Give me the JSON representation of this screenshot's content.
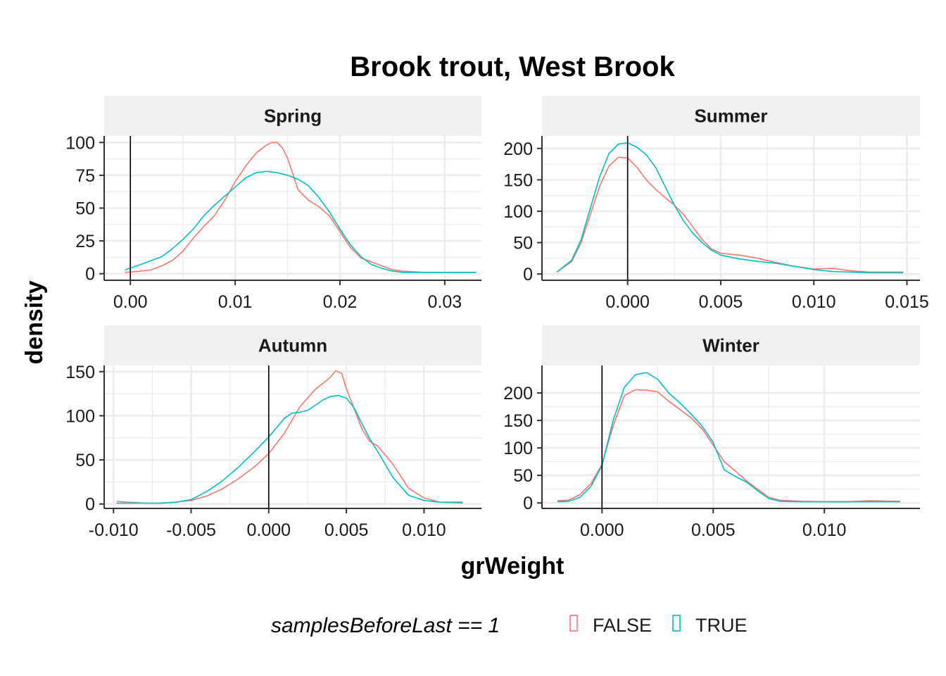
{
  "chart_data": {
    "type": "line",
    "title": "Brook trout, West Brook",
    "xlabel": "grWeight",
    "ylabel": "density",
    "grid": true,
    "legend": {
      "position": "bottom",
      "title": "samplesBeforeLast == 1",
      "entries": [
        {
          "name": "FALSE",
          "color": "#F8766D"
        },
        {
          "name": "TRUE",
          "color": "#00BFC4"
        }
      ]
    },
    "colors": {
      "FALSE": "#F8766D",
      "TRUE": "#00BFC4",
      "strip_bg": "#F0F0F0",
      "grid": "#EBEBEB"
    },
    "vline_x": 0,
    "panels": [
      {
        "name": "Spring",
        "xlim": [
          -0.0025,
          0.0335
        ],
        "ylim": [
          -5,
          105
        ],
        "xticks": [
          0,
          0.01,
          0.02,
          0.03
        ],
        "xtick_labels": [
          "0.00",
          "0.01",
          "0.02",
          "0.03"
        ],
        "yticks": [
          0,
          25,
          50,
          75,
          100
        ],
        "ytick_labels": [
          "0",
          "25",
          "50",
          "75",
          "100"
        ],
        "series": [
          {
            "name": "FALSE",
            "x": [
              -0.0005,
              0.001,
              0.002,
              0.003,
              0.004,
              0.005,
              0.006,
              0.007,
              0.008,
              0.009,
              0.01,
              0.011,
              0.012,
              0.013,
              0.0135,
              0.014,
              0.0145,
              0.015,
              0.0155,
              0.016,
              0.017,
              0.018,
              0.019,
              0.02,
              0.021,
              0.022,
              0.023,
              0.024,
              0.025,
              0.026,
              0.028,
              0.03,
              0.033
            ],
            "y": [
              1,
              2,
              3,
              6,
              10,
              17,
              27,
              36,
              44,
              56,
              70,
              82,
              92,
              98,
              100,
              100,
              96,
              88,
              76,
              64,
              56,
              51,
              44,
              32,
              20,
              12,
              9,
              6,
              3,
              2,
              1,
              1,
              1
            ]
          },
          {
            "name": "TRUE",
            "x": [
              -0.0005,
              0.001,
              0.002,
              0.003,
              0.004,
              0.005,
              0.006,
              0.007,
              0.008,
              0.009,
              0.01,
              0.011,
              0.012,
              0.013,
              0.014,
              0.015,
              0.016,
              0.017,
              0.018,
              0.019,
              0.02,
              0.021,
              0.022,
              0.023,
              0.024,
              0.025,
              0.026,
              0.028,
              0.03,
              0.033
            ],
            "y": [
              3,
              7,
              10,
              13,
              19,
              26,
              34,
              44,
              52,
              59,
              66,
              73,
              77,
              78,
              77,
              75,
              72,
              67,
              58,
              47,
              34,
              22,
              13,
              7,
              4,
              2,
              1,
              1,
              1,
              1
            ]
          }
        ]
      },
      {
        "name": "Summer",
        "xlim": [
          -0.0046,
          0.0157
        ],
        "ylim": [
          -10,
          220
        ],
        "xticks": [
          0,
          0.005,
          0.01,
          0.015
        ],
        "xtick_labels": [
          "0.000",
          "0.005",
          "0.010",
          "0.015"
        ],
        "yticks": [
          0,
          50,
          100,
          150,
          200
        ],
        "ytick_labels": [
          "0",
          "50",
          "100",
          "150",
          "200"
        ],
        "series": [
          {
            "name": "FALSE",
            "x": [
              -0.0038,
              -0.003,
              -0.0025,
              -0.002,
              -0.0015,
              -0.001,
              -0.0005,
              0,
              0.0005,
              0.001,
              0.0015,
              0.002,
              0.0025,
              0.003,
              0.0035,
              0.004,
              0.0045,
              0.005,
              0.006,
              0.007,
              0.008,
              0.009,
              0.01,
              0.011,
              0.012,
              0.013,
              0.0148
            ],
            "y": [
              3,
              20,
              50,
              95,
              140,
              172,
              186,
              185,
              170,
              150,
              135,
              122,
              110,
              95,
              75,
              55,
              40,
              33,
              30,
              25,
              18,
              12,
              8,
              9,
              5,
              3,
              3
            ]
          },
          {
            "name": "TRUE",
            "x": [
              -0.0038,
              -0.003,
              -0.0025,
              -0.002,
              -0.0015,
              -0.001,
              -0.0005,
              0,
              0.0005,
              0.001,
              0.0015,
              0.002,
              0.0025,
              0.003,
              0.0035,
              0.004,
              0.0045,
              0.005,
              0.006,
              0.007,
              0.008,
              0.009,
              0.01,
              0.011,
              0.012,
              0.013,
              0.0148
            ],
            "y": [
              3,
              22,
              55,
              105,
              155,
              192,
              207,
              209,
              202,
              190,
              170,
              140,
              110,
              85,
              65,
              50,
              38,
              30,
              24,
              20,
              17,
              12,
              7,
              4,
              3,
              2,
              2
            ]
          }
        ]
      },
      {
        "name": "Autumn",
        "xlim": [
          -0.0106,
          0.0137
        ],
        "ylim": [
          -5,
          157
        ],
        "xticks": [
          -0.01,
          -0.005,
          0,
          0.005,
          0.01
        ],
        "xtick_labels": [
          "-0.010",
          "-0.005",
          "0.000",
          "0.005",
          "0.010"
        ],
        "yticks": [
          0,
          50,
          100,
          150
        ],
        "ytick_labels": [
          "0",
          "50",
          "100",
          "150"
        ],
        "series": [
          {
            "name": "FALSE",
            "x": [
              -0.0098,
              -0.009,
              -0.008,
              -0.007,
              -0.006,
              -0.005,
              -0.004,
              -0.003,
              -0.002,
              -0.001,
              0,
              0.001,
              0.002,
              0.003,
              0.0035,
              0.004,
              0.0043,
              0.0047,
              0.005,
              0.0055,
              0.006,
              0.0065,
              0.007,
              0.008,
              0.009,
              0.01,
              0.011,
              0.0125
            ],
            "y": [
              3,
              2,
              1,
              1,
              2,
              4,
              9,
              17,
              28,
              41,
              57,
              80,
              110,
              130,
              137,
              144,
              151,
              148,
              131,
              108,
              85,
              71,
              66,
              45,
              18,
              7,
              2,
              1
            ]
          },
          {
            "name": "TRUE",
            "x": [
              -0.0098,
              -0.009,
              -0.008,
              -0.007,
              -0.006,
              -0.005,
              -0.004,
              -0.003,
              -0.002,
              -0.001,
              0,
              0.001,
              0.0015,
              0.002,
              0.0025,
              0.003,
              0.0035,
              0.004,
              0.0045,
              0.005,
              0.0055,
              0.006,
              0.0065,
              0.007,
              0.008,
              0.009,
              0.01,
              0.011,
              0.0125
            ],
            "y": [
              1,
              1,
              1,
              1,
              2,
              5,
              14,
              26,
              41,
              58,
              76,
              97,
              103,
              104,
              106,
              112,
              118,
              122,
              123,
              120,
              109,
              91,
              74,
              60,
              30,
              10,
              4,
              2,
              2
            ]
          }
        ]
      },
      {
        "name": "Winter",
        "xlim": [
          -0.0027,
          0.0143
        ],
        "ylim": [
          -10,
          250
        ],
        "xticks": [
          0,
          0.005,
          0.01
        ],
        "xtick_labels": [
          "0.000",
          "0.005",
          "0.010"
        ],
        "yticks": [
          0,
          50,
          100,
          150,
          200
        ],
        "ytick_labels": [
          "0",
          "50",
          "100",
          "150",
          "200"
        ],
        "series": [
          {
            "name": "FALSE",
            "x": [
              -0.002,
              -0.0015,
              -0.001,
              -0.0005,
              0,
              0.0005,
              0.001,
              0.0015,
              0.002,
              0.0025,
              0.003,
              0.0035,
              0.004,
              0.0045,
              0.005,
              0.0055,
              0.006,
              0.0065,
              0.007,
              0.0075,
              0.008,
              0.009,
              0.01,
              0.011,
              0.012,
              0.0134
            ],
            "y": [
              4,
              5,
              15,
              35,
              70,
              140,
              195,
              206,
              205,
              202,
              185,
              170,
              155,
              135,
              105,
              75,
              58,
              40,
              25,
              10,
              5,
              3,
              2,
              2,
              4,
              3
            ]
          },
          {
            "name": "TRUE",
            "x": [
              -0.002,
              -0.0015,
              -0.001,
              -0.0005,
              0,
              0.0005,
              0.001,
              0.0015,
              0.002,
              0.0025,
              0.003,
              0.0035,
              0.004,
              0.0045,
              0.005,
              0.0055,
              0.006,
              0.0065,
              0.007,
              0.0075,
              0.008,
              0.009,
              0.01,
              0.011,
              0.012,
              0.0134
            ],
            "y": [
              2,
              3,
              10,
              30,
              68,
              150,
              210,
              233,
              237,
              225,
              200,
              182,
              162,
              140,
              110,
              60,
              48,
              38,
              22,
              8,
              3,
              2,
              2,
              2,
              2,
              2
            ]
          }
        ]
      }
    ]
  }
}
